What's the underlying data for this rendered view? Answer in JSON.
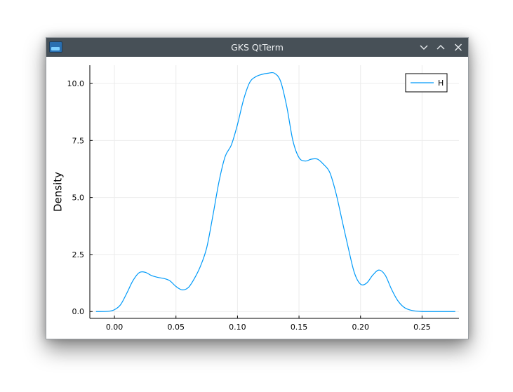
{
  "window": {
    "title": "GKS QtTerm",
    "icon": "gks-app-icon",
    "controls": [
      "minimize-icon",
      "maximize-icon",
      "close-icon"
    ]
  },
  "colors": {
    "titlebar": "#475057",
    "series": "#009af9",
    "grid": "#ececec"
  },
  "chart_data": {
    "type": "line",
    "title": "",
    "xlabel": "",
    "ylabel": "Density",
    "xlim": [
      -0.02,
      0.28
    ],
    "ylim": [
      -0.3,
      10.8
    ],
    "xticks": [
      0.0,
      0.05,
      0.1,
      0.15,
      0.2,
      0.25
    ],
    "xtick_labels": [
      "0.00",
      "0.05",
      "0.10",
      "0.15",
      "0.20",
      "0.25"
    ],
    "yticks": [
      0.0,
      2.5,
      5.0,
      7.5,
      10.0
    ],
    "ytick_labels": [
      "0.0",
      "2.5",
      "5.0",
      "7.5",
      "10.0"
    ],
    "grid": true,
    "legend_position": "top-right",
    "series": [
      {
        "name": "H",
        "x": [
          -0.015,
          -0.005,
          0.0,
          0.005,
          0.01,
          0.015,
          0.02,
          0.025,
          0.03,
          0.035,
          0.04,
          0.045,
          0.05,
          0.055,
          0.06,
          0.065,
          0.07,
          0.075,
          0.08,
          0.085,
          0.09,
          0.095,
          0.1,
          0.105,
          0.11,
          0.115,
          0.12,
          0.125,
          0.13,
          0.135,
          0.14,
          0.145,
          0.15,
          0.155,
          0.16,
          0.165,
          0.17,
          0.175,
          0.18,
          0.185,
          0.19,
          0.195,
          0.2,
          0.205,
          0.21,
          0.215,
          0.22,
          0.225,
          0.23,
          0.235,
          0.24,
          0.245,
          0.25,
          0.26,
          0.277
        ],
        "y": [
          0.0,
          0.01,
          0.08,
          0.3,
          0.8,
          1.35,
          1.7,
          1.72,
          1.58,
          1.5,
          1.45,
          1.35,
          1.1,
          0.95,
          1.05,
          1.45,
          2.0,
          2.8,
          4.2,
          5.7,
          6.8,
          7.3,
          8.2,
          9.3,
          10.05,
          10.3,
          10.4,
          10.45,
          10.45,
          10.1,
          9.0,
          7.5,
          6.75,
          6.6,
          6.68,
          6.68,
          6.45,
          6.1,
          5.2,
          4.0,
          2.8,
          1.7,
          1.2,
          1.25,
          1.6,
          1.82,
          1.6,
          1.0,
          0.5,
          0.2,
          0.07,
          0.02,
          0.0,
          0.0,
          0.0
        ]
      }
    ]
  }
}
